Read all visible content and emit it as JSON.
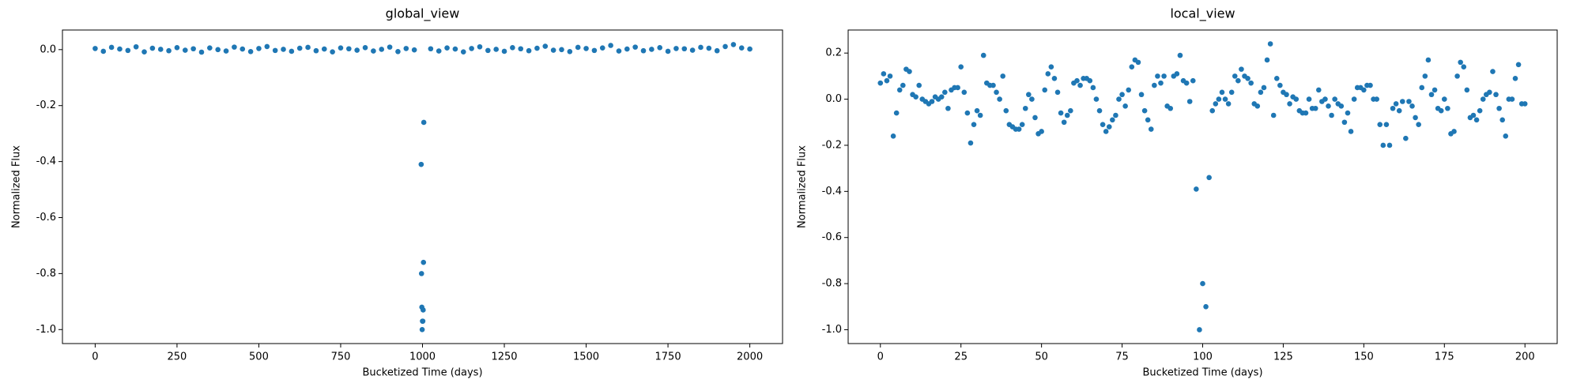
{
  "chart_data": [
    {
      "type": "scatter",
      "title": "global_view",
      "x_label": "Bucketized Time (days)",
      "y_label": "Normalized Flux",
      "color": "#1f77b4",
      "grid": false,
      "xlim": [
        -100,
        2100
      ],
      "ylim": [
        -1.05,
        0.07
      ],
      "xticks": [
        0,
        250,
        500,
        750,
        1000,
        1250,
        1500,
        1750,
        2000
      ],
      "yticks": [
        {
          "value": 0,
          "label": "0.0"
        },
        {
          "value": -0.2,
          "label": "-0.2"
        },
        {
          "value": -0.4,
          "label": "-0.4"
        },
        {
          "value": -0.6,
          "label": "-0.6"
        },
        {
          "value": -0.8,
          "label": "-0.8"
        },
        {
          "value": -1.0,
          "label": "-1.0"
        }
      ],
      "x": [
        0,
        25,
        50,
        75,
        100,
        125,
        150,
        175,
        200,
        225,
        250,
        275,
        300,
        325,
        350,
        375,
        400,
        425,
        450,
        475,
        500,
        525,
        550,
        575,
        600,
        625,
        650,
        675,
        700,
        725,
        750,
        775,
        800,
        825,
        850,
        875,
        900,
        925,
        950,
        975,
        996,
        997,
        998,
        999,
        1000,
        1001,
        1002,
        1003,
        1004,
        1025,
        1050,
        1075,
        1100,
        1125,
        1150,
        1175,
        1200,
        1225,
        1250,
        1275,
        1300,
        1325,
        1350,
        1375,
        1400,
        1425,
        1450,
        1475,
        1500,
        1525,
        1550,
        1575,
        1600,
        1625,
        1650,
        1675,
        1700,
        1725,
        1750,
        1775,
        1800,
        1825,
        1850,
        1875,
        1900,
        1925,
        1950,
        1975,
        2000
      ],
      "values": [
        0.004,
        -0.006,
        0.008,
        0.002,
        -0.003,
        0.01,
        -0.008,
        0.005,
        0.001,
        -0.004,
        0.007,
        -0.002,
        0.003,
        -0.009,
        0.006,
        0.0,
        -0.005,
        0.009,
        0.002,
        -0.007,
        0.004,
        0.011,
        -0.003,
        0.001,
        -0.006,
        0.005,
        0.008,
        -0.004,
        0.002,
        -0.008,
        0.006,
        0.003,
        -0.002,
        0.007,
        -0.005,
        0.001,
        0.009,
        -0.007,
        0.004,
        -0.001,
        -0.41,
        -0.8,
        -0.92,
        -1.0,
        -0.97,
        -0.97,
        -0.93,
        -0.76,
        -0.26,
        0.003,
        -0.005,
        0.006,
        0.002,
        -0.008,
        0.004,
        0.01,
        -0.003,
        0.001,
        -0.006,
        0.007,
        0.003,
        -0.004,
        0.005,
        0.012,
        -0.002,
        0.0,
        -0.007,
        0.008,
        0.004,
        -0.003,
        0.006,
        0.015,
        -0.005,
        0.002,
        0.009,
        -0.004,
        0.001,
        0.007,
        -0.006,
        0.004,
        0.003,
        -0.002,
        0.008,
        0.005,
        -0.004,
        0.011,
        0.018,
        0.006,
        0.002
      ]
    },
    {
      "type": "scatter",
      "title": "local_view",
      "x_label": "Bucketized Time (days)",
      "y_label": "Normalized Flux",
      "color": "#1f77b4",
      "grid": false,
      "xlim": [
        -10,
        210
      ],
      "ylim": [
        -1.06,
        0.3
      ],
      "xticks": [
        0,
        25,
        50,
        75,
        100,
        125,
        150,
        175,
        200
      ],
      "yticks": [
        {
          "value": -1.0,
          "label": "-1.0"
        },
        {
          "value": -0.8,
          "label": "-0.8"
        },
        {
          "value": -0.6,
          "label": "-0.6"
        },
        {
          "value": -0.4,
          "label": "-0.4"
        },
        {
          "value": -0.2,
          "label": "-0.2"
        },
        {
          "value": 0,
          "label": "0.0"
        },
        {
          "value": 0.2,
          "label": "0.2"
        }
      ],
      "x": [
        0,
        1,
        2,
        3,
        4,
        5,
        6,
        7,
        8,
        9,
        10,
        11,
        12,
        13,
        14,
        15,
        16,
        17,
        18,
        19,
        20,
        21,
        22,
        23,
        24,
        25,
        26,
        27,
        28,
        29,
        30,
        31,
        32,
        33,
        34,
        35,
        36,
        37,
        38,
        39,
        40,
        41,
        42,
        43,
        44,
        45,
        46,
        47,
        48,
        49,
        50,
        51,
        52,
        53,
        54,
        55,
        56,
        57,
        58,
        59,
        60,
        61,
        62,
        63,
        64,
        65,
        66,
        67,
        68,
        69,
        70,
        71,
        72,
        73,
        74,
        75,
        76,
        77,
        78,
        79,
        80,
        81,
        82,
        83,
        84,
        85,
        86,
        87,
        88,
        89,
        90,
        91,
        92,
        93,
        94,
        95,
        96,
        97,
        98,
        99,
        100,
        101,
        102,
        103,
        104,
        105,
        106,
        107,
        108,
        109,
        110,
        111,
        112,
        113,
        114,
        115,
        116,
        117,
        118,
        119,
        120,
        121,
        122,
        123,
        124,
        125,
        126,
        127,
        128,
        129,
        130,
        131,
        132,
        133,
        134,
        135,
        136,
        137,
        138,
        139,
        140,
        141,
        142,
        143,
        144,
        145,
        146,
        147,
        148,
        149,
        150,
        151,
        152,
        153,
        154,
        155,
        156,
        157,
        158,
        159,
        160,
        161,
        162,
        163,
        164,
        165,
        166,
        167,
        168,
        169,
        170,
        171,
        172,
        173,
        174,
        175,
        176,
        177,
        178,
        179,
        180,
        181,
        182,
        183,
        184,
        185,
        186,
        187,
        188,
        189,
        190,
        191,
        192,
        193,
        194,
        195,
        196,
        197,
        198,
        199,
        200
      ],
      "values": [
        0.07,
        0.11,
        0.08,
        0.1,
        -0.16,
        -0.06,
        0.04,
        0.06,
        0.13,
        0.12,
        0.02,
        0.01,
        0.06,
        0.0,
        -0.01,
        -0.02,
        -0.01,
        0.01,
        0.0,
        0.01,
        0.03,
        -0.04,
        0.04,
        0.05,
        0.05,
        0.14,
        0.03,
        -0.06,
        -0.19,
        -0.11,
        -0.05,
        -0.07,
        0.19,
        0.07,
        0.06,
        0.06,
        0.03,
        0.0,
        0.1,
        -0.05,
        -0.11,
        -0.12,
        -0.13,
        -0.13,
        -0.11,
        -0.04,
        0.02,
        0.0,
        -0.08,
        -0.15,
        -0.14,
        0.04,
        0.11,
        0.14,
        0.09,
        0.03,
        -0.06,
        -0.1,
        -0.07,
        -0.05,
        0.07,
        0.08,
        0.06,
        0.09,
        0.09,
        0.08,
        0.05,
        0.0,
        -0.05,
        -0.11,
        -0.14,
        -0.12,
        -0.09,
        -0.07,
        0.0,
        0.02,
        -0.03,
        0.04,
        0.14,
        0.17,
        0.16,
        0.02,
        -0.05,
        -0.09,
        -0.13,
        0.06,
        0.1,
        0.07,
        0.1,
        -0.03,
        -0.04,
        0.1,
        0.11,
        0.19,
        0.08,
        0.07,
        -0.01,
        0.08,
        -0.39,
        -1.0,
        -0.8,
        -0.9,
        -0.34,
        -0.05,
        -0.02,
        0.0,
        0.03,
        0.0,
        -0.02,
        0.03,
        0.1,
        0.08,
        0.13,
        0.1,
        0.09,
        0.07,
        -0.02,
        -0.03,
        0.03,
        0.05,
        0.17,
        0.24,
        -0.07,
        0.09,
        0.06,
        0.03,
        0.02,
        -0.02,
        0.01,
        0.0,
        -0.05,
        -0.06,
        -0.06,
        0.0,
        -0.04,
        -0.04,
        0.04,
        -0.01,
        0.0,
        -0.03,
        -0.07,
        0.0,
        -0.02,
        -0.03,
        -0.1,
        -0.06,
        -0.14,
        0.0,
        0.05,
        0.05,
        0.04,
        0.06,
        0.06,
        0.0,
        0.0,
        -0.11,
        -0.2,
        -0.11,
        -0.2,
        -0.04,
        -0.02,
        -0.05,
        -0.01,
        -0.17,
        -0.01,
        -0.03,
        -0.08,
        -0.11,
        0.05,
        0.1,
        0.17,
        0.02,
        0.04,
        -0.04,
        -0.05,
        0.0,
        -0.04,
        -0.15,
        -0.14,
        0.1,
        0.16,
        0.14,
        0.04,
        -0.08,
        -0.07,
        -0.09,
        -0.05,
        0.0,
        0.02,
        0.03,
        0.12,
        0.02,
        -0.04,
        -0.09,
        -0.16,
        0.0,
        0.0,
        0.09,
        0.15,
        -0.02,
        -0.02
      ]
    }
  ]
}
